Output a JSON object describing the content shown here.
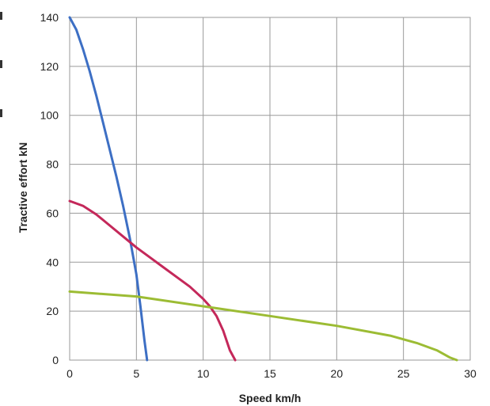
{
  "chart_data": {
    "type": "line",
    "xlabel": "Speed km/h",
    "ylabel": "Tractive effort kN",
    "xlim": [
      0,
      30
    ],
    "ylim": [
      0,
      140
    ],
    "xticks": [
      0,
      5,
      10,
      15,
      20,
      25,
      30
    ],
    "yticks": [
      0,
      20,
      40,
      60,
      80,
      100,
      120,
      140
    ],
    "grid": true,
    "legend": "none",
    "series": [
      {
        "color": "#3d6fc4",
        "x": [
          0,
          0.5,
          1,
          1.5,
          2,
          2.5,
          3,
          3.5,
          4,
          4.5,
          5,
          5.3,
          5.6,
          5.8
        ],
        "y": [
          140,
          135,
          127,
          118,
          108,
          97,
          86,
          75,
          63,
          50,
          35,
          22,
          8,
          0
        ]
      },
      {
        "color": "#c4285a",
        "x": [
          0,
          1,
          2,
          3,
          4,
          5,
          6,
          7,
          8,
          9,
          10,
          10.5,
          11,
          11.5,
          12,
          12.4
        ],
        "y": [
          65,
          63,
          59.5,
          55,
          50.5,
          46,
          42,
          38,
          34,
          30,
          25,
          22,
          18,
          12,
          4,
          0
        ]
      },
      {
        "color": "#9cbc34",
        "x": [
          0,
          5,
          10,
          15,
          20,
          24,
          26,
          27.5,
          28.5,
          29
        ],
        "y": [
          28,
          26,
          22,
          18,
          14,
          10,
          7,
          4,
          1,
          0
        ]
      }
    ]
  }
}
